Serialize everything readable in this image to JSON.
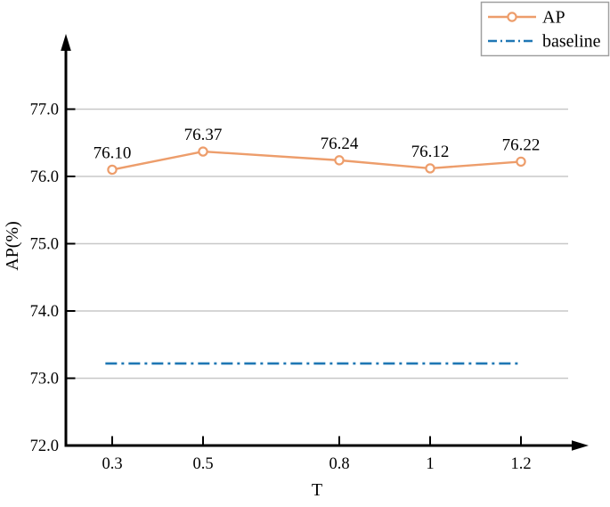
{
  "figure": {
    "background": "#ffffff"
  },
  "chart_data": {
    "type": "line",
    "title": "",
    "xlabel": "T",
    "ylabel": "AP(%)",
    "xlim": [
      0.19,
      1.32
    ],
    "ylim": [
      72.0,
      78.0
    ],
    "grid": "horizontal",
    "x_ticks": [
      0.3,
      0.5,
      0.8,
      1,
      1.2
    ],
    "x_tick_labels": [
      "0.3",
      "0.5",
      "0.8",
      "1",
      "1.2"
    ],
    "y_ticks": [
      72.0,
      73.0,
      74.0,
      75.0,
      76.0,
      77.0
    ],
    "y_tick_labels": [
      "72.0",
      "73.0",
      "74.0",
      "75.0",
      "76.0",
      "77.0"
    ],
    "series": [
      {
        "name": "AP",
        "type": "line-markers",
        "color": "#ED9D6B",
        "marker": "open-circle",
        "x": [
          0.3,
          0.5,
          0.8,
          1.0,
          1.2
        ],
        "values": [
          76.1,
          76.37,
          76.24,
          76.12,
          76.22
        ],
        "data_labels": [
          "76.10",
          "76.37",
          "76.24",
          "76.12",
          "76.22"
        ]
      },
      {
        "name": "baseline",
        "type": "horizontal-dash-dot",
        "color": "#1F77B4",
        "value": 73.22,
        "x_range": [
          0.285,
          1.2
        ]
      }
    ],
    "legend": {
      "position": "top-right",
      "border_color": "#A0A0A0",
      "background": "#ffffff",
      "entries": [
        {
          "label": "AP",
          "swatch": "orange-line-circle-marker"
        },
        {
          "label": "baseline",
          "swatch": "blue-dash-dot-line"
        }
      ]
    },
    "colors": {
      "grid": "#C8C8C8",
      "axis": "#000000",
      "text": "#000000"
    }
  }
}
